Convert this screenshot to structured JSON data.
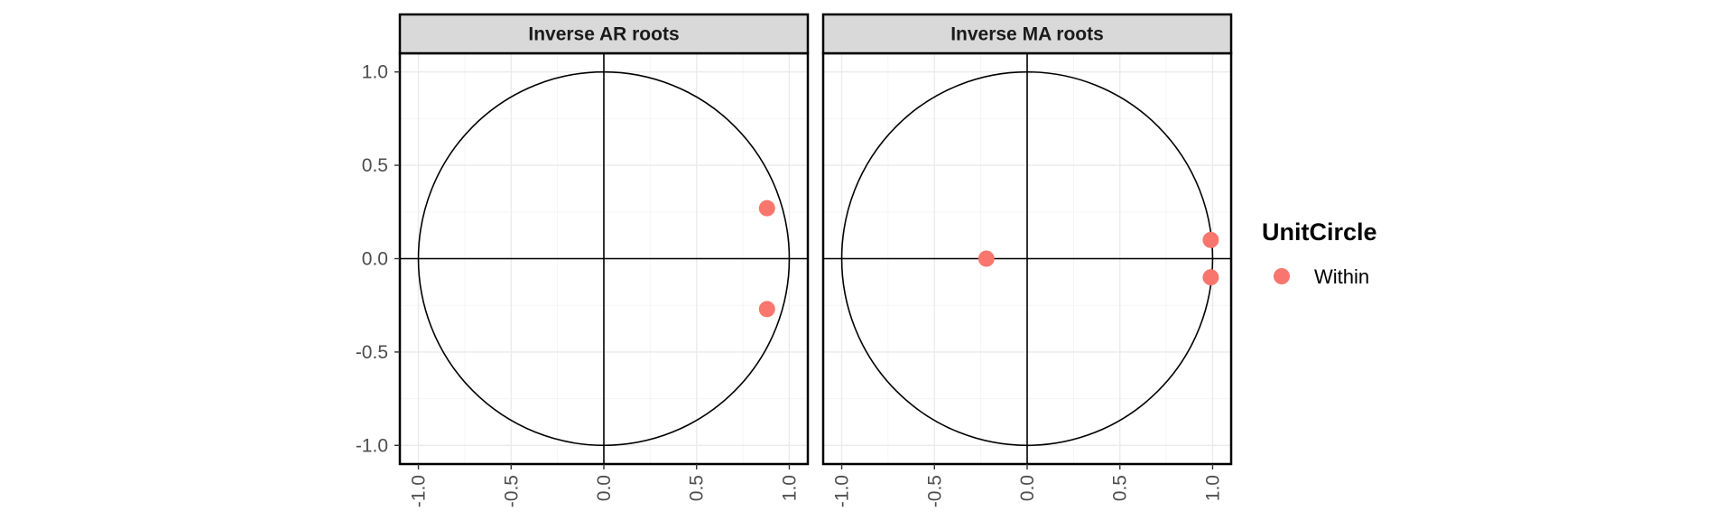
{
  "chart_data": [
    {
      "type": "scatter",
      "title": "Inverse AR roots",
      "xlim": [
        -1.1,
        1.1
      ],
      "ylim": [
        -1.1,
        1.1
      ],
      "x_ticks": [
        -1.0,
        -0.5,
        0.0,
        0.5,
        1.0
      ],
      "y_ticks": [
        -1.0,
        -0.5,
        0.0,
        0.5,
        1.0
      ],
      "unit_circle": true,
      "grid": true,
      "points": [
        {
          "x": 0.88,
          "y": 0.27,
          "series": "Within"
        },
        {
          "x": 0.88,
          "y": -0.27,
          "series": "Within"
        }
      ]
    },
    {
      "type": "scatter",
      "title": "Inverse MA roots",
      "xlim": [
        -1.1,
        1.1
      ],
      "ylim": [
        -1.1,
        1.1
      ],
      "x_ticks": [
        -1.0,
        -0.5,
        0.0,
        0.5,
        1.0
      ],
      "y_ticks": [
        -1.0,
        -0.5,
        0.0,
        0.5,
        1.0
      ],
      "unit_circle": true,
      "grid": true,
      "points": [
        {
          "x": -0.22,
          "y": 0.0,
          "series": "Within"
        },
        {
          "x": 0.99,
          "y": 0.1,
          "series": "Within"
        },
        {
          "x": 0.99,
          "y": -0.1,
          "series": "Within"
        }
      ]
    }
  ],
  "tick_labels": [
    "-1.0",
    "-0.5",
    "0.0",
    "0.5",
    "1.0"
  ],
  "legend": {
    "title": "UnitCircle",
    "position": "right",
    "entries": [
      {
        "label": "Within",
        "color": "#F8766D"
      }
    ]
  },
  "colors": {
    "point": "#F8766D",
    "strip": "#D9D9D9",
    "grid_major": "#EBEBEB",
    "grid_minor": "#F5F5F5",
    "axis_text": "#4D4D4D"
  }
}
